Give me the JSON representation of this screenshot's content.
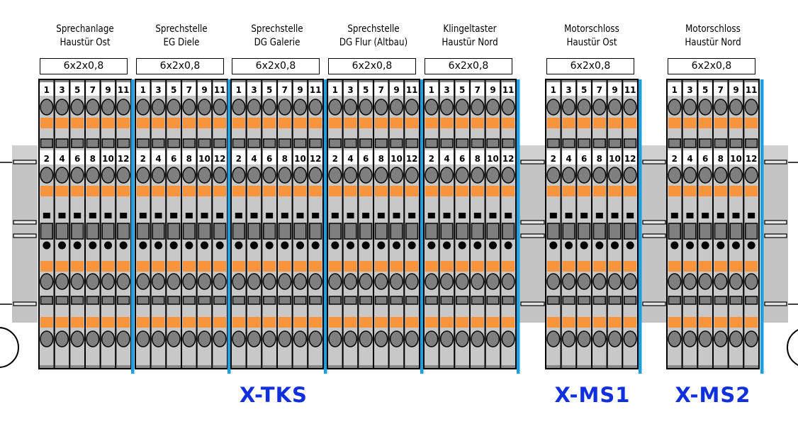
{
  "groups": [
    {
      "title": [
        "Sprechanlage",
        "Haustür Ost"
      ],
      "cable": "6x2x0,8",
      "top_numbers": [
        "1",
        "3",
        "5",
        "7",
        "9",
        "11"
      ],
      "bottom_numbers": [
        "2",
        "4",
        "6",
        "8",
        "10",
        "12"
      ]
    },
    {
      "title": [
        "Sprechstelle",
        "EG Diele"
      ],
      "cable": "6x2x0,8",
      "top_numbers": [
        "1",
        "3",
        "5",
        "7",
        "9",
        "11"
      ],
      "bottom_numbers": [
        "2",
        "4",
        "6",
        "8",
        "10",
        "12"
      ]
    },
    {
      "title": [
        "Sprechstelle",
        "DG Galerie"
      ],
      "cable": "6x2x0,8",
      "top_numbers": [
        "1",
        "3",
        "5",
        "7",
        "9",
        "11"
      ],
      "bottom_numbers": [
        "2",
        "4",
        "6",
        "8",
        "10",
        "12"
      ]
    },
    {
      "title": [
        "Sprechstelle",
        "DG Flur (Altbau)"
      ],
      "cable": "6x2x0,8",
      "top_numbers": [
        "1",
        "3",
        "5",
        "7",
        "9",
        "11"
      ],
      "bottom_numbers": [
        "2",
        "4",
        "6",
        "8",
        "10",
        "12"
      ]
    },
    {
      "title": [
        "Klingeltaster",
        "Haustür Nord"
      ],
      "cable": "6x2x0,8",
      "top_numbers": [
        "1",
        "3",
        "5",
        "7",
        "9",
        "11"
      ],
      "bottom_numbers": [
        "2",
        "4",
        "6",
        "8",
        "10",
        "12"
      ]
    },
    {
      "title": [
        "Motorschloss",
        "Haustür Ost"
      ],
      "cable": "6x2x0,8",
      "top_numbers": [
        "1",
        "3",
        "5",
        "7",
        "9",
        "11"
      ],
      "bottom_numbers": [
        "2",
        "4",
        "6",
        "8",
        "10",
        "12"
      ]
    },
    {
      "title": [
        "Motorschloss",
        "Haustür Nord"
      ],
      "cable": "6x2x0,8",
      "top_numbers": [
        "1",
        "3",
        "5",
        "7",
        "9",
        "11"
      ],
      "bottom_numbers": [
        "2",
        "4",
        "6",
        "8",
        "10",
        "12"
      ]
    }
  ],
  "blocks": [
    {
      "label": "X-TKS"
    },
    {
      "label": "X-MS1"
    },
    {
      "label": "X-MS2"
    }
  ],
  "colors": {
    "terminal": "#c8c8c8",
    "dark": "#7f7f7f",
    "orange": "#f7943c",
    "separator": "#1a9fe0",
    "block_label": "#1030e0",
    "endcap": "#c4c4c4"
  }
}
